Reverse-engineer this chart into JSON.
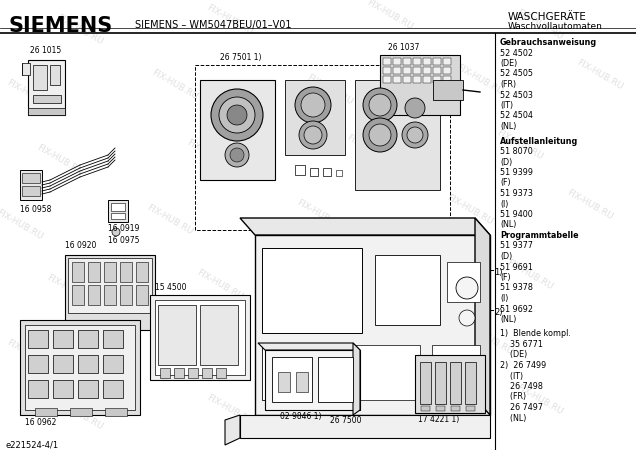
{
  "title_siemens": "SIEMENS",
  "title_model": "SIEMENS – WM5047BEU/01–V01",
  "title_right1": "WASCHGERÄTE",
  "title_right2": "Waschvollautomaten",
  "footer_left": "e221524-4/1",
  "bg_color": "#ffffff",
  "wm_color": "#c8c8c8",
  "right_panel_text": [
    [
      "Gebrauchsanweisung",
      true
    ],
    [
      "52 4502",
      false
    ],
    [
      "(DE)",
      false
    ],
    [
      "52 4505",
      false
    ],
    [
      "(FR)",
      false
    ],
    [
      "52 4503",
      false
    ],
    [
      "(IT)",
      false
    ],
    [
      "52 4504",
      false
    ],
    [
      "(NL)",
      false
    ],
    [
      "",
      false
    ],
    [
      "Aufstellanleitung",
      true
    ],
    [
      "51 8070",
      false
    ],
    [
      "(D)",
      false
    ],
    [
      "51 9399",
      false
    ],
    [
      "(F)",
      false
    ],
    [
      "51 9373",
      false
    ],
    [
      "(I)",
      false
    ],
    [
      "51 9400",
      false
    ],
    [
      "(NL)",
      false
    ],
    [
      "Programmtabelle",
      true
    ],
    [
      "51 9377",
      false
    ],
    [
      "(D)",
      false
    ],
    [
      "51 9691",
      false
    ],
    [
      "(F)",
      false
    ],
    [
      "51 9378",
      false
    ],
    [
      "(I)",
      false
    ],
    [
      "51 9692",
      false
    ],
    [
      "(NL)",
      false
    ],
    [
      "",
      false
    ],
    [
      "1)  Blende kompl.",
      false
    ],
    [
      "    35 6771",
      false
    ],
    [
      "    (DE)",
      false
    ],
    [
      "2)  26 7499",
      false
    ],
    [
      "    (IT)",
      false
    ],
    [
      "    26 7498",
      false
    ],
    [
      "    (FR)",
      false
    ],
    [
      "    26 7497",
      false
    ],
    [
      "    (NL)",
      false
    ]
  ]
}
